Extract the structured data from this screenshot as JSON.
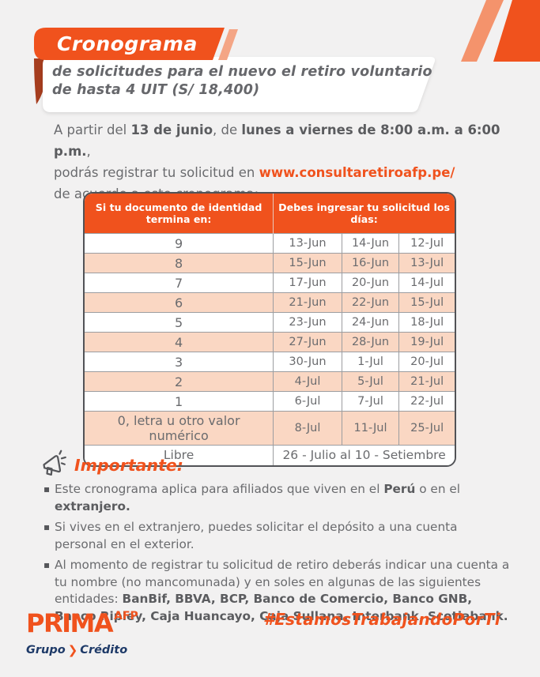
{
  "colors": {
    "accent_orange": "#F0521D",
    "salmon": "#F4936C",
    "peach_row": "#FAD7C3",
    "fold_maroon": "#A63D1E",
    "navy": "#1E3A68",
    "body_gray": "#6A6B6E",
    "background": "#F2F1F1"
  },
  "icons": {
    "megaphone": "megaphone-icon",
    "brand_chevron": "❯"
  },
  "title_ribbon": {
    "label": "Cronograma"
  },
  "subtitle": {
    "line1": "de solicitudes para el nuevo el retiro voluntario",
    "line2": "de hasta 4 UIT (S/ 18,400)"
  },
  "intro": {
    "l1s1": "A partir del ",
    "l1s2": "13 de junio",
    "l1s3": ", de ",
    "l1s4": "lunes a viernes de 8:00 a.m. a 6:00 p.m.",
    "l1s5": ",",
    "l2s1": "podrás registrar tu solicitud en ",
    "l2link": "www.consultaretiroafp.pe/",
    "l3": "de acuerdo a este cronograma:"
  },
  "table": {
    "header_left": "Si tu documento de identidad termina en:",
    "header_right": "Debes ingresar tu solicitud los días:",
    "rows": [
      {
        "id": "9",
        "d1": "13-Jun",
        "d2": "14-Jun",
        "d3": "12-Jul"
      },
      {
        "id": "8",
        "d1": "15-Jun",
        "d2": "16-Jun",
        "d3": "13-Jul"
      },
      {
        "id": "7",
        "d1": "17-Jun",
        "d2": "20-Jun",
        "d3": "14-Jul"
      },
      {
        "id": "6",
        "d1": "21-Jun",
        "d2": "22-Jun",
        "d3": "15-Jul"
      },
      {
        "id": "5",
        "d1": "23-Jun",
        "d2": "24-Jun",
        "d3": "18-Jul"
      },
      {
        "id": "4",
        "d1": "27-Jun",
        "d2": "28-Jun",
        "d3": "19-Jul"
      },
      {
        "id": "3",
        "d1": "30-Jun",
        "d2": "1-Jul",
        "d3": "20-Jul"
      },
      {
        "id": "2",
        "d1": "4-Jul",
        "d2": "5-Jul",
        "d3": "21-Jul"
      },
      {
        "id": "1",
        "d1": "6-Jul",
        "d2": "7-Jul",
        "d3": "22-Jul"
      },
      {
        "id": "0, letra u otro valor numérico",
        "d1": "8-Jul",
        "d2": "11-Jul",
        "d3": "25-Jul"
      }
    ],
    "footer_row": {
      "id": "Libre",
      "range": "26 - Julio al 10 - Setiembre"
    }
  },
  "important": {
    "title": "Importante:",
    "b1s1": "Este cronograma aplica para afiliados que viven en el ",
    "b1s2": "Perú",
    "b1s3": " o en el ",
    "b1s4": "extranjero.",
    "b2": "Si vives en el extranjero, puedes solicitar el depósito a una cuenta personal en el exterior.",
    "b3s1": "Al momento de registrar tu solicitud de retiro deberás indicar una cuenta a tu nombre (no mancomunada) y en soles en algunas de las siguientes entidades: ",
    "b3s2": "BanBif, BBVA, BCP, Banco de Comercio, Banco GNB, Banco Ripley, Caja Huancayo, Caja Sullana, Interbank, Scotiabank."
  },
  "footer": {
    "brand": "PRIMA",
    "brand_sup": "AFP",
    "group_a": "Grupo",
    "group_b": "Crédito",
    "hashtag": "#EstamosTrabajandoPorTi"
  }
}
